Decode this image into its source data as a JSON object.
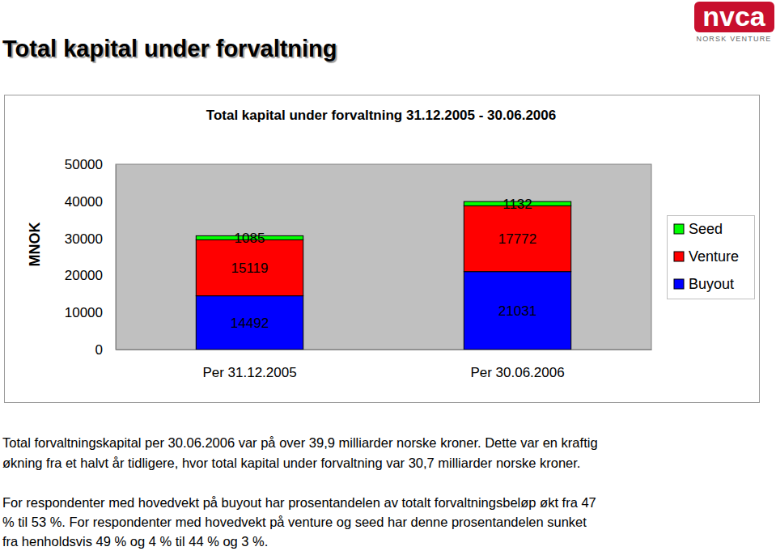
{
  "chart_data": {
    "type": "bar",
    "stacked": true,
    "data_labels": true,
    "grid": false,
    "legend": "right",
    "title": "Total kapital under forvaltning 31.12.2005 - 30.06.2006",
    "y_label": "MNOK",
    "categories": [
      "Per 31.12.2005",
      "Per 30.06.2006"
    ],
    "series": [
      {
        "name": "Buyout",
        "color": "#0000ff",
        "values": [
          14492,
          21031
        ]
      },
      {
        "name": "Venture",
        "color": "#ff0000",
        "values": [
          15119,
          17772
        ]
      },
      {
        "name": "Seed",
        "color": "#00ff00",
        "values": [
          1085,
          1132
        ]
      }
    ],
    "ylim": [
      0,
      50000
    ],
    "yticks": [
      0,
      10000,
      20000,
      30000,
      40000,
      50000
    ]
  },
  "page": {
    "title": "Total kapital under forvaltning",
    "logo": {
      "main": "nvca",
      "sub": "NORSK VENTURE"
    },
    "paragraphs": [
      [
        "Total forvaltningskapital per 30.06.2006 var på over 39,9 milliarder norske kroner. Dette var en kraftig",
        "økning fra et halvt år tidligere, hvor total kapital under forvaltning var 30,7 milliarder norske kroner."
      ],
      [
        "For respondenter med hovedvekt på buyout har prosentandelen av totalt forvaltningsbeløp økt fra 47",
        "% til 53 %. For respondenter med hovedvekt på venture og seed har denne prosentandelen sunket",
        "fra henholdsvis 49 % og 4 % til 44 % og 3 %."
      ]
    ]
  }
}
